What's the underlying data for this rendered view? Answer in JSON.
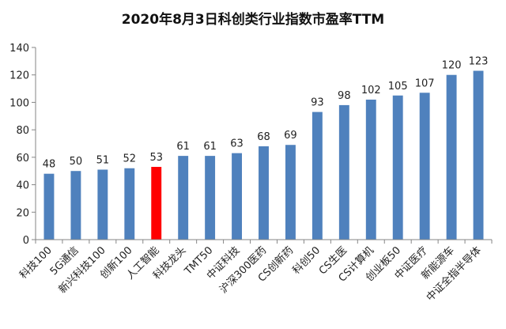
{
  "chart_data": {
    "type": "bar",
    "title": "2020年8月3日科创类行业指数市盈率TTM",
    "xlabel": "",
    "ylabel": "",
    "ylim": [
      0,
      140
    ],
    "yticks": [
      0,
      20,
      40,
      60,
      80,
      100,
      120,
      140
    ],
    "grid": false,
    "legend": "none",
    "colors": {
      "bar": "#4F81BD",
      "highlight": "#FF0000",
      "axis": "#868686"
    },
    "highlight_category": "人工智能",
    "categories": [
      "科技100",
      "5G通信",
      "新兴科技100",
      "创新100",
      "人工智能",
      "科技龙头",
      "TMT50",
      "中证科技",
      "沪深300医药",
      "CS创新药",
      "科创50",
      "CS生医",
      "CS计算机",
      "创业板50",
      "中证医疗",
      "新能源车",
      "中证全指半导体"
    ],
    "values": [
      48,
      50,
      51,
      52,
      53,
      61,
      61,
      63,
      68,
      69,
      93,
      98,
      102,
      105,
      107,
      120,
      123
    ]
  }
}
